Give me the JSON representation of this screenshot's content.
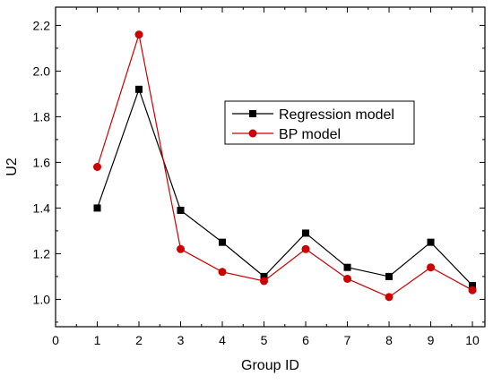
{
  "chart_data": {
    "type": "line",
    "xlabel": "Group ID",
    "ylabel": "U2",
    "xlim": [
      0,
      10.3
    ],
    "ylim": [
      0.88,
      2.28
    ],
    "x_ticks": [
      0,
      1,
      2,
      3,
      4,
      5,
      6,
      7,
      8,
      9,
      10
    ],
    "y_ticks": [
      1.0,
      1.2,
      1.4,
      1.6,
      1.8,
      2.0,
      2.2
    ],
    "x": [
      1,
      2,
      3,
      4,
      5,
      6,
      7,
      8,
      9,
      10
    ],
    "series": [
      {
        "name": "Regression model",
        "color": "#000000",
        "marker": "square",
        "values": [
          1.4,
          1.92,
          1.39,
          1.25,
          1.1,
          1.29,
          1.14,
          1.1,
          1.25,
          1.06
        ]
      },
      {
        "name": "BP model",
        "color": "#cc0000",
        "marker": "circle",
        "values": [
          1.58,
          2.16,
          1.22,
          1.12,
          1.08,
          1.22,
          1.09,
          1.01,
          1.14,
          1.04
        ]
      }
    ],
    "legend_position": "upper-right",
    "grid": false
  }
}
